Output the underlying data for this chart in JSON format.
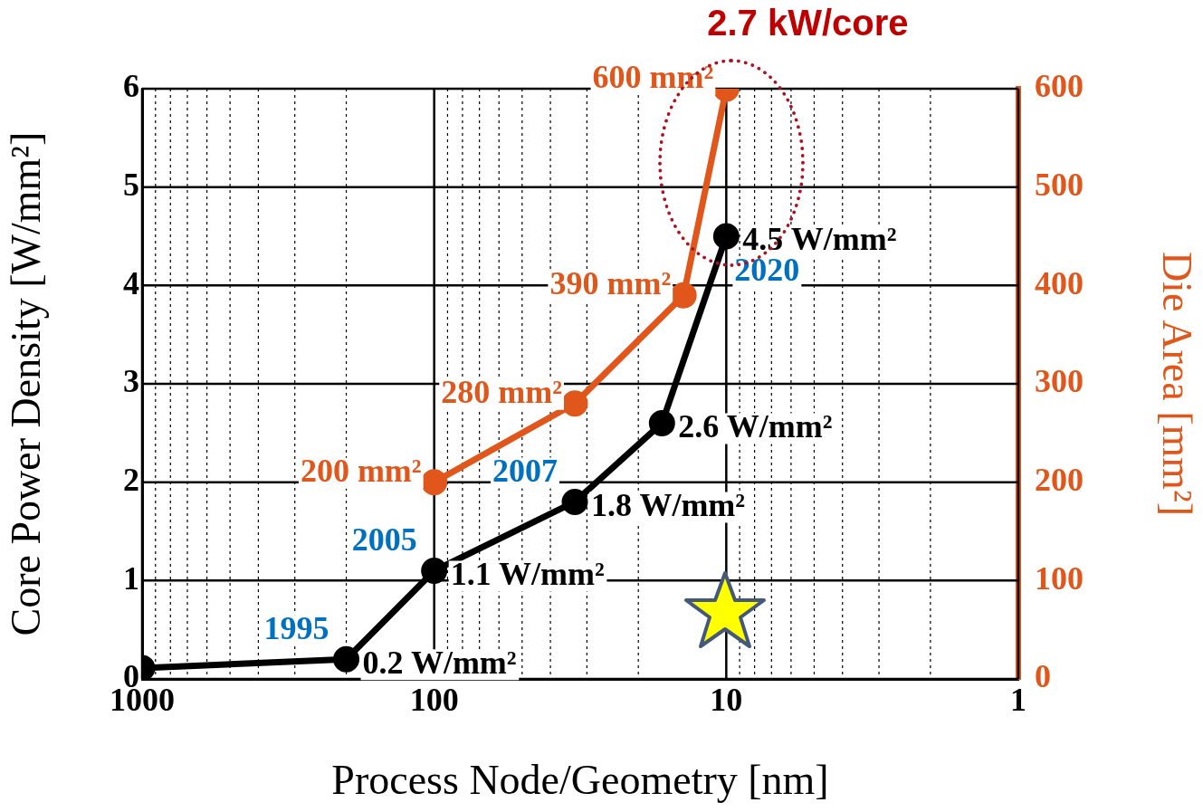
{
  "chart_data": {
    "type": "line",
    "xlabel": "Process Node/Geometry [nm]",
    "ylabel": "Core Power Density [W/mm²]",
    "y2label": "Die Area [mm²]",
    "log": "x",
    "grid": true,
    "legend": false,
    "marker": "circle",
    "line_style": "solid",
    "xlim": [
      1000,
      1
    ],
    "xticks": [
      1000,
      {
        "value": 900,
        "label": null
      },
      {
        "value": 800,
        "label": null
      },
      {
        "value": 700,
        "label": null
      },
      {
        "value": 600,
        "label": null
      },
      {
        "value": 500,
        "label": null
      },
      {
        "value": 400,
        "label": null
      },
      {
        "value": 300,
        "label": null
      },
      {
        "value": 200,
        "label": null
      },
      100,
      {
        "value": 90,
        "label": null
      },
      {
        "value": 80,
        "label": null
      },
      {
        "value": 70,
        "label": null
      },
      {
        "value": 60,
        "label": null
      },
      {
        "value": 50,
        "label": null
      },
      {
        "value": 40,
        "label": null
      },
      {
        "value": 30,
        "label": null
      },
      {
        "value": 20,
        "label": null
      },
      10,
      {
        "value": 9,
        "label": null
      },
      {
        "value": 8,
        "label": null
      },
      {
        "value": 7,
        "label": null
      },
      {
        "value": 6,
        "label": null
      },
      {
        "value": 5,
        "label": null
      },
      {
        "value": 4,
        "label": null
      },
      {
        "value": 3,
        "label": null
      },
      {
        "value": 2,
        "label": null
      },
      1
    ],
    "ylim": [
      0,
      6
    ],
    "yticks": [
      0,
      1,
      2,
      3,
      4,
      5,
      6
    ],
    "y2lim": [
      0,
      600
    ],
    "y2ticks": [
      0,
      100,
      200,
      300,
      400,
      500,
      600
    ],
    "series": [
      {
        "color": "#000000",
        "x": [
          1000,
          200,
          100,
          33,
          16.6,
          10
        ],
        "values": [
          0.11,
          0.2,
          1.1,
          1.8,
          2.6,
          4.5
        ],
        "value_labels": [
          null,
          "0.2 W/mm²",
          "1.1 W/mm²",
          "1.8 W/mm²",
          "2.6 W/mm²",
          "4.5 W/mm²"
        ]
      },
      {
        "color": "#e0561b",
        "axis": "y2",
        "x": [
          100,
          33,
          14,
          10
        ],
        "values": [
          200,
          280,
          390,
          600
        ],
        "value_labels": [
          "200 mm²",
          "280 mm²",
          "390 mm²",
          "600 mm²"
        ]
      }
    ],
    "annotations": [
      "2.7 kW/core",
      {
        "text": "1995",
        "x": 200,
        "y": 0.2
      },
      {
        "text": "2005",
        "x": 100,
        "y": 1.1
      },
      {
        "text": "2007",
        "x": 33,
        "y": 1.8
      },
      {
        "text": "2020",
        "x": 10,
        "y": 4.5
      }
    ]
  }
}
